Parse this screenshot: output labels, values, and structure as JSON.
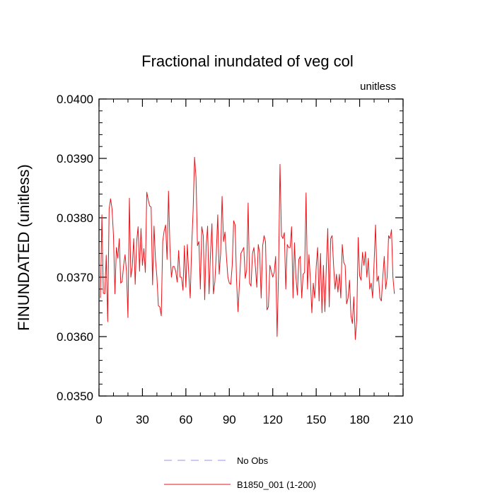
{
  "chart_data": {
    "type": "line",
    "title": "Fractional inundated of veg col",
    "units_label": "unitless",
    "ylabel": "FINUNDATED  (unitless)",
    "xlabel": "",
    "xlim": [
      0,
      210
    ],
    "ylim": [
      0.035,
      0.04
    ],
    "xticks": [
      0,
      30,
      60,
      90,
      120,
      150,
      180,
      210
    ],
    "yticks": [
      0.035,
      0.036,
      0.037,
      0.038,
      0.039,
      0.04
    ],
    "xtick_labels": [
      "0",
      "30",
      "60",
      "90",
      "120",
      "150",
      "180",
      "210"
    ],
    "ytick_labels": [
      "0.0350",
      "0.0360",
      "0.0370",
      "0.0380",
      "0.0390",
      "0.0400"
    ],
    "x_minor_step": 10,
    "y_minor_step": 0.0002,
    "grid": false,
    "legend_placement": "bottom-center",
    "series": [
      {
        "name": "B1850_001 (1-200)",
        "color": "#e8141a",
        "x_start": 1,
        "x_step": 1,
        "values": [
          0.03665,
          0.03805,
          0.03673,
          0.03672,
          0.03737,
          0.03625,
          0.03815,
          0.03832,
          0.03815,
          0.0377,
          0.03672,
          0.0375,
          0.03732,
          0.03765,
          0.0369,
          0.03693,
          0.0372,
          0.03738,
          0.0371,
          0.03632,
          0.03833,
          0.037,
          0.03718,
          0.03765,
          0.03688,
          0.0376,
          0.03785,
          0.0371,
          0.03782,
          0.0372,
          0.03748,
          0.03708,
          0.03843,
          0.0383,
          0.0382,
          0.03818,
          0.03687,
          0.03786,
          0.0373,
          0.037,
          0.03652,
          0.0365,
          0.03635,
          0.0376,
          0.03778,
          0.03788,
          0.0373,
          0.03845,
          0.0375,
          0.037,
          0.03718,
          0.03718,
          0.0371,
          0.03692,
          0.03745,
          0.037,
          0.037,
          0.03678,
          0.03753,
          0.03683,
          0.03755,
          0.03705,
          0.03665,
          0.03752,
          0.03812,
          0.03902,
          0.03868,
          0.03753,
          0.0376,
          0.0368,
          0.03785,
          0.0377,
          0.03662,
          0.03752,
          0.03786,
          0.03672,
          0.0374,
          0.0379,
          0.03672,
          0.03692,
          0.0374,
          0.03805,
          0.03705,
          0.0374,
          0.03836,
          0.0376,
          0.03776,
          0.03735,
          0.037,
          0.0369,
          0.03688,
          0.0372,
          0.03795,
          0.03788,
          0.03695,
          0.03642,
          0.0369,
          0.0374,
          0.03745,
          0.0375,
          0.03698,
          0.03712,
          0.03825,
          0.0369,
          0.03685,
          0.0374,
          0.0375,
          0.03718,
          0.03683,
          0.03755,
          0.0374,
          0.03665,
          0.03752,
          0.0377,
          0.0376,
          0.03645,
          0.0365,
          0.0372,
          0.0371,
          0.037,
          0.03708,
          0.03735,
          0.036,
          0.03708,
          0.0389,
          0.0377,
          0.03765,
          0.03775,
          0.0368,
          0.03755,
          0.0375,
          0.0375,
          0.03785,
          0.03665,
          0.03758,
          0.037,
          0.0367,
          0.0373,
          0.03735,
          0.03665,
          0.03705,
          0.03708,
          0.03842,
          0.0368,
          0.03738,
          0.03695,
          0.0364,
          0.0369,
          0.03665,
          0.03717,
          0.0375,
          0.0366,
          0.0374,
          0.0364,
          0.0372,
          0.03642,
          0.03718,
          0.03782,
          0.0365,
          0.03765,
          0.0377,
          0.0372,
          0.0368,
          0.03705,
          0.03675,
          0.03705,
          0.03665,
          0.03755,
          0.03725,
          0.0372,
          0.03655,
          0.03665,
          0.03695,
          0.03635,
          0.03622,
          0.03667,
          0.03595,
          0.03628,
          0.03767,
          0.03702,
          0.03695,
          0.03742,
          0.0372,
          0.03743,
          0.037,
          0.03732,
          0.0368,
          0.0369,
          0.03665,
          0.03725,
          0.03788,
          0.03693,
          0.03702,
          0.03665,
          0.0366,
          0.037,
          0.03735,
          0.0368,
          0.037,
          0.0377,
          0.03765,
          0.0378,
          0.037,
          0.03672
        ]
      },
      {
        "name": "No Obs",
        "color": "#9494e8",
        "dashed": true,
        "values": []
      }
    ]
  }
}
